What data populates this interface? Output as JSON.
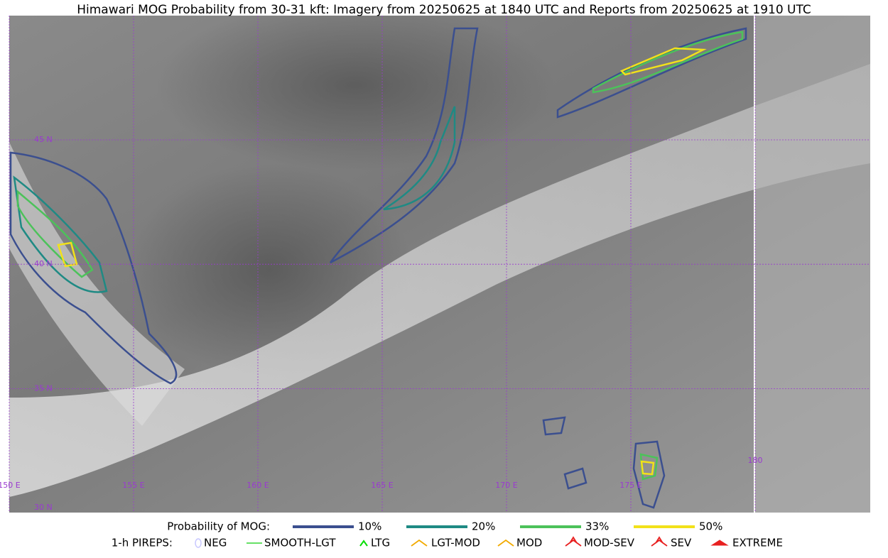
{
  "title": "Himawari MOG Probability from 30-31 kft: Imagery from 20250625 at 1840 UTC and Reports from 20250625 at 1910 UTC",
  "grid_labels": {
    "lat": [
      "45 N",
      "40 N",
      "35 N",
      "30 N"
    ],
    "lon": [
      "150 E",
      "155 E",
      "160 E",
      "165 E",
      "170 E",
      "175 E",
      "180"
    ]
  },
  "legend": {
    "probability": {
      "label": "Probability of MOG:",
      "items": [
        {
          "label": "10%",
          "color": "#3b4f8f"
        },
        {
          "label": "20%",
          "color": "#1f8a84"
        },
        {
          "label": "33%",
          "color": "#4cc25a"
        },
        {
          "label": "50%",
          "color": "#f2e11a"
        }
      ]
    },
    "pireps": {
      "label": "1-h PIREPS:",
      "items": [
        {
          "label": "NEG",
          "color": "#c8c8ff"
        },
        {
          "label": "SMOOTH-LGT",
          "color": "#33d633"
        },
        {
          "label": "LTG",
          "color": "#00dd00"
        },
        {
          "label": "LGT-MOD",
          "color": "#f2aa00"
        },
        {
          "label": "MOD",
          "color": "#f2aa00"
        },
        {
          "label": "MOD-SEV",
          "color": "#e82020"
        },
        {
          "label": "SEV",
          "color": "#e82020"
        },
        {
          "label": "EXTREME",
          "color": "#e82020"
        }
      ]
    }
  }
}
